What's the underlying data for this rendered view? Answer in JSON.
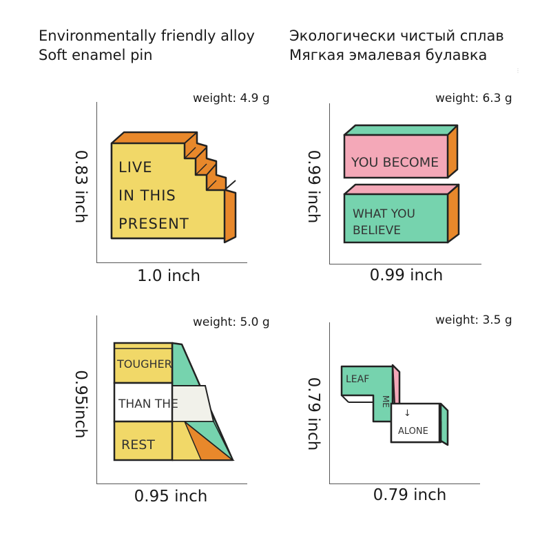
{
  "header": {
    "en_line1": "Environmentally friendly alloy",
    "en_line2": "Soft enamel pin",
    "ru_line1": "Экологически чистый сплав",
    "ru_line2": "Мягкая эмалевая булавка"
  },
  "pins": [
    {
      "weight": "weight: 4.9 g",
      "height": "0.83 inch",
      "width": "1.0 inch",
      "lines": [
        "LIVE",
        "IN THIS",
        "PRESENT"
      ]
    },
    {
      "weight": "weight: 6.3 g",
      "height": "0.99 inch",
      "width": "0.99 inch",
      "lines_top": [
        "YOU BECOME"
      ],
      "lines_bottom": [
        "WHAT YOU",
        "BELIEVE"
      ]
    },
    {
      "weight": "weight: 5.0 g",
      "height": "0.95inch",
      "width": "0.95 inch",
      "lines": [
        "TOUGHER",
        "THAN THE",
        "REST"
      ]
    },
    {
      "weight": "weight: 3.5 g",
      "height": "0.79 inch",
      "width": "0.79 inch",
      "lines": [
        "LEAF",
        "ME",
        "↓",
        "ALONE"
      ]
    }
  ],
  "colors": {
    "yellow": "#f1d868",
    "orange": "#e8882b",
    "pink": "#f4a8b8",
    "teal": "#76d3ae",
    "outline": "#222222"
  }
}
